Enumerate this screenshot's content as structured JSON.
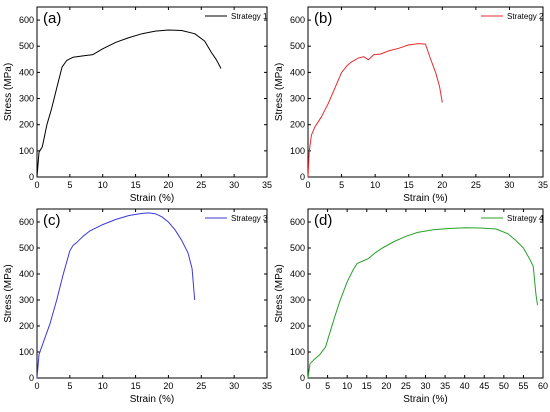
{
  "chart_data": [
    {
      "panel": "(a)",
      "type": "line",
      "xlabel": "Strain (%)",
      "ylabel": "Stress (MPa)",
      "xlim": [
        0,
        35
      ],
      "ylim": [
        0,
        650
      ],
      "xticks": [
        0,
        5,
        10,
        15,
        20,
        25,
        30,
        35
      ],
      "yticks": [
        0,
        100,
        200,
        300,
        400,
        500,
        600
      ],
      "legend_position": "top-right",
      "series": [
        {
          "name": "Strategy 1",
          "color": "#000000",
          "x": [
            0,
            0.3,
            0.8,
            1.5,
            2.2,
            3,
            3.8,
            4.5,
            5.5,
            7,
            8.5,
            10,
            12,
            14,
            16,
            18,
            20,
            22,
            24,
            25.5,
            26.5,
            27.3,
            28
          ],
          "y": [
            0,
            95,
            115,
            200,
            260,
            340,
            420,
            445,
            458,
            463,
            468,
            490,
            515,
            533,
            548,
            558,
            562,
            560,
            548,
            520,
            478,
            448,
            415
          ]
        }
      ]
    },
    {
      "panel": "(b)",
      "type": "line",
      "xlabel": "Strain (%)",
      "ylabel": "Stress (MPa)",
      "xlim": [
        0,
        35
      ],
      "ylim": [
        0,
        650
      ],
      "xticks": [
        0,
        5,
        10,
        15,
        20,
        25,
        30,
        35
      ],
      "yticks": [
        0,
        100,
        200,
        300,
        400,
        500,
        600
      ],
      "legend_position": "top-right",
      "series": [
        {
          "name": "Strategy 2",
          "color": "#e8292c",
          "x": [
            0,
            0.2,
            0.5,
            1,
            2,
            3,
            4,
            5,
            5.8,
            6.5,
            7.5,
            8.3,
            9,
            9.8,
            10.8,
            12,
            13.5,
            15,
            16.5,
            17.5,
            18.2,
            19,
            19.6,
            20
          ],
          "y": [
            0,
            100,
            160,
            190,
            230,
            280,
            340,
            400,
            425,
            440,
            455,
            460,
            448,
            468,
            470,
            482,
            492,
            505,
            510,
            508,
            455,
            400,
            345,
            285
          ]
        }
      ]
    },
    {
      "panel": "(c)",
      "type": "line",
      "xlabel": "Strain (%)",
      "ylabel": "Stress (MPa)",
      "xlim": [
        0,
        35
      ],
      "ylim": [
        0,
        650
      ],
      "xticks": [
        0,
        5,
        10,
        15,
        20,
        25,
        30,
        35
      ],
      "yticks": [
        0,
        100,
        200,
        300,
        400,
        500,
        600
      ],
      "legend_position": "top-right",
      "series": [
        {
          "name": "Strategy 3",
          "color": "#3a3ad6",
          "x": [
            0,
            0.3,
            1,
            2,
            3,
            4,
            5,
            5.5,
            6,
            7,
            8,
            10,
            12,
            14,
            16,
            17,
            18,
            19,
            20,
            21,
            22,
            23,
            23.6,
            24
          ],
          "y": [
            0,
            90,
            140,
            210,
            300,
            400,
            490,
            510,
            520,
            545,
            565,
            590,
            610,
            625,
            633,
            635,
            632,
            620,
            600,
            570,
            530,
            480,
            420,
            300
          ]
        }
      ]
    },
    {
      "panel": "(d)",
      "type": "line",
      "xlabel": "Strain (%)",
      "ylabel": "Stress (MPa)",
      "xlim": [
        0,
        60
      ],
      "ylim": [
        0,
        650
      ],
      "xticks": [
        0,
        5,
        10,
        15,
        20,
        25,
        30,
        35,
        40,
        45,
        50,
        55,
        60
      ],
      "yticks": [
        0,
        100,
        200,
        300,
        400,
        500,
        600
      ],
      "legend_position": "top-right",
      "series": [
        {
          "name": "Strategy 4",
          "color": "#28a028",
          "x": [
            0,
            0.5,
            1.5,
            3,
            4.5,
            5.5,
            6.5,
            8,
            10,
            11.5,
            12.5,
            14,
            15.5,
            17,
            19,
            22,
            25,
            28,
            32,
            36,
            40,
            44,
            48,
            51,
            53,
            55,
            56.5,
            57.5,
            58.2,
            58.6
          ],
          "y": [
            0,
            55,
            70,
            90,
            120,
            170,
            220,
            290,
            370,
            415,
            440,
            450,
            460,
            480,
            500,
            525,
            545,
            560,
            570,
            575,
            578,
            577,
            573,
            555,
            530,
            500,
            460,
            430,
            320,
            280
          ]
        }
      ]
    }
  ]
}
